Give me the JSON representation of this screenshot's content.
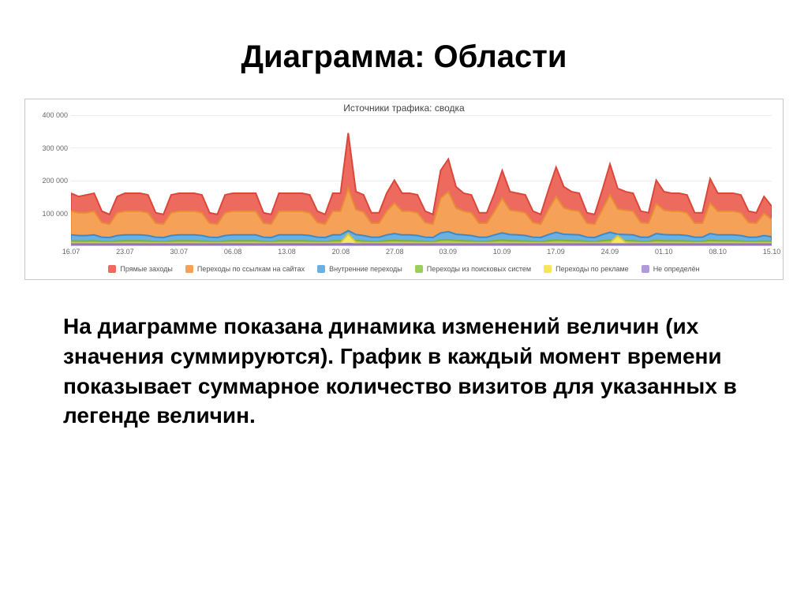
{
  "slide": {
    "title": "Диаграмма: Области",
    "body": "На диаграмме показана динамика изменений величин (их значения суммируются). График в каждый момент времени показывает суммарное количество визитов для указанных в легенде величин."
  },
  "chart": {
    "type": "area",
    "title": "Источники трафика: сводка",
    "background_color": "#ffffff",
    "grid_color": "#eeeeee",
    "border_color": "#c8c8c8",
    "y_axis": {
      "min": 0,
      "max": 400000,
      "ticks": [
        100000,
        200000,
        300000,
        400000
      ],
      "tick_labels": [
        "100 000",
        "200 000",
        "300 000",
        "400 000"
      ],
      "fontsize": 9,
      "color": "#666666"
    },
    "x_axis": {
      "labels": [
        "16.07",
        "23.07",
        "30.07",
        "06.08",
        "13.08",
        "20.08",
        "27.08",
        "03.09",
        "10.09",
        "17.09",
        "24.09",
        "01.10",
        "08.10",
        "15.10"
      ],
      "positions_pct": [
        0,
        7.7,
        15.4,
        23.1,
        30.8,
        38.5,
        46.2,
        53.8,
        61.5,
        69.2,
        76.9,
        84.6,
        92.3,
        100
      ],
      "fontsize": 9,
      "color": "#666666"
    },
    "series_stacked_top_to_bottom": [
      {
        "name": "Прямые заходы",
        "color": "#ec6a5e",
        "stroke": "#d9483a",
        "cum_values": [
          160000,
          150000,
          155000,
          160000,
          105000,
          95000,
          150000,
          160000,
          160000,
          160000,
          155000,
          100000,
          95000,
          155000,
          160000,
          160000,
          160000,
          155000,
          100000,
          95000,
          155000,
          160000,
          160000,
          160000,
          160000,
          100000,
          95000,
          160000,
          160000,
          160000,
          160000,
          155000,
          105000,
          95000,
          160000,
          160000,
          345000,
          165000,
          155000,
          100000,
          100000,
          160000,
          200000,
          160000,
          160000,
          155000,
          105000,
          95000,
          230000,
          265000,
          180000,
          160000,
          155000,
          100000,
          100000,
          160000,
          230000,
          165000,
          160000,
          155000,
          105000,
          95000,
          170000,
          240000,
          180000,
          165000,
          160000,
          100000,
          95000,
          170000,
          250000,
          175000,
          165000,
          160000,
          105000,
          100000,
          200000,
          165000,
          160000,
          160000,
          155000,
          100000,
          100000,
          205000,
          160000,
          160000,
          160000,
          155000,
          105000,
          100000,
          150000,
          120000
        ]
      },
      {
        "name": "Переходы по ссылкам на сайтах",
        "color": "#f5a158",
        "stroke": "#e78b35",
        "cum_values": [
          105000,
          100000,
          100000,
          105000,
          70000,
          65000,
          100000,
          105000,
          105000,
          105000,
          100000,
          68000,
          65000,
          100000,
          105000,
          105000,
          105000,
          100000,
          68000,
          65000,
          100000,
          105000,
          105000,
          105000,
          105000,
          68000,
          65000,
          105000,
          105000,
          105000,
          105000,
          100000,
          70000,
          65000,
          105000,
          105000,
          175000,
          110000,
          102000,
          68000,
          68000,
          105000,
          130000,
          105000,
          105000,
          100000,
          70000,
          65000,
          145000,
          165000,
          115000,
          105000,
          100000,
          68000,
          68000,
          105000,
          145000,
          108000,
          105000,
          100000,
          70000,
          65000,
          110000,
          150000,
          115000,
          108000,
          105000,
          68000,
          65000,
          110000,
          155000,
          112000,
          108000,
          105000,
          70000,
          68000,
          128000,
          108000,
          105000,
          105000,
          100000,
          68000,
          68000,
          130000,
          105000,
          105000,
          105000,
          100000,
          70000,
          68000,
          98000,
          80000
        ]
      },
      {
        "name": "Внутренние переходы",
        "color": "#6ab0e2",
        "stroke": "#3e8ac7",
        "cum_values": [
          32000,
          30000,
          30000,
          32000,
          25000,
          24000,
          30000,
          32000,
          32000,
          32000,
          30000,
          25000,
          24000,
          30000,
          32000,
          32000,
          32000,
          30000,
          25000,
          24000,
          30000,
          32000,
          32000,
          32000,
          32000,
          25000,
          24000,
          32000,
          32000,
          32000,
          32000,
          30000,
          25000,
          24000,
          32000,
          32000,
          45000,
          33000,
          30000,
          25000,
          25000,
          32000,
          36000,
          32000,
          32000,
          30000,
          25000,
          24000,
          38000,
          42000,
          34000,
          32000,
          30000,
          25000,
          25000,
          32000,
          38000,
          33000,
          32000,
          30000,
          25000,
          24000,
          33000,
          40000,
          34000,
          33000,
          32000,
          25000,
          24000,
          33000,
          40000,
          34000,
          33000,
          32000,
          25000,
          25000,
          36000,
          33000,
          32000,
          32000,
          30000,
          25000,
          25000,
          36000,
          32000,
          32000,
          32000,
          30000,
          25000,
          25000,
          30000,
          26000
        ]
      },
      {
        "name": "Переходы из поисковых систем",
        "color": "#9bcf5c",
        "stroke": "#78b239",
        "cum_values": [
          14000,
          13000,
          13000,
          14000,
          12000,
          11000,
          13000,
          14000,
          14000,
          14000,
          13000,
          12000,
          11000,
          13000,
          14000,
          14000,
          14000,
          13000,
          12000,
          11000,
          13000,
          14000,
          14000,
          14000,
          14000,
          12000,
          11000,
          14000,
          14000,
          14000,
          14000,
          13000,
          12000,
          11000,
          14000,
          14000,
          18000,
          15000,
          13000,
          12000,
          12000,
          14000,
          15000,
          14000,
          14000,
          13000,
          12000,
          11000,
          16000,
          17000,
          15000,
          14000,
          13000,
          12000,
          12000,
          14000,
          16000,
          14000,
          14000,
          13000,
          12000,
          11000,
          14000,
          16000,
          15000,
          14000,
          14000,
          12000,
          11000,
          14000,
          16000,
          15000,
          14000,
          14000,
          12000,
          12000,
          15000,
          14000,
          14000,
          14000,
          13000,
          12000,
          12000,
          15000,
          14000,
          14000,
          14000,
          13000,
          12000,
          12000,
          13000,
          12000
        ]
      },
      {
        "name": "Переходы по рекламе",
        "color": "#f5e55c",
        "stroke": "#d9c836",
        "cum_values": [
          8000,
          8000,
          8000,
          8000,
          8000,
          8000,
          8000,
          8000,
          8000,
          8000,
          8000,
          8000,
          8000,
          8000,
          8000,
          8000,
          8000,
          8000,
          8000,
          8000,
          8000,
          8000,
          8000,
          8000,
          8000,
          8000,
          8000,
          8000,
          8000,
          8000,
          8000,
          8000,
          8000,
          8000,
          8000,
          8000,
          35000,
          10000,
          8000,
          8000,
          8000,
          8000,
          8000,
          8000,
          8000,
          8000,
          8000,
          8000,
          8000,
          8000,
          8000,
          8000,
          8000,
          8000,
          8000,
          8000,
          8000,
          8000,
          8000,
          8000,
          8000,
          8000,
          8000,
          8000,
          8000,
          8000,
          8000,
          8000,
          8000,
          8000,
          8000,
          30000,
          10000,
          8000,
          8000,
          8000,
          8000,
          8000,
          8000,
          8000,
          8000,
          8000,
          8000,
          8000,
          8000,
          8000,
          8000,
          8000,
          8000,
          8000,
          8000,
          8000
        ]
      },
      {
        "name": "Не определён",
        "color": "#b19ad9",
        "stroke": "#8f74c1",
        "cum_values": [
          4000,
          4000,
          4000,
          4000,
          4000,
          4000,
          4000,
          4000,
          4000,
          4000,
          4000,
          4000,
          4000,
          4000,
          4000,
          4000,
          4000,
          4000,
          4000,
          4000,
          4000,
          4000,
          4000,
          4000,
          4000,
          4000,
          4000,
          4000,
          4000,
          4000,
          4000,
          4000,
          4000,
          4000,
          4000,
          4000,
          5000,
          4000,
          4000,
          4000,
          4000,
          4000,
          4000,
          4000,
          4000,
          4000,
          4000,
          4000,
          4000,
          4000,
          4000,
          4000,
          4000,
          4000,
          4000,
          4000,
          4000,
          4000,
          4000,
          4000,
          4000,
          4000,
          4000,
          4000,
          4000,
          4000,
          4000,
          4000,
          4000,
          4000,
          4000,
          4000,
          4000,
          4000,
          4000,
          4000,
          4000,
          4000,
          4000,
          4000,
          4000,
          4000,
          4000,
          4000,
          4000,
          4000,
          4000,
          4000,
          4000,
          4000,
          4000,
          4000
        ]
      }
    ],
    "legend": [
      {
        "label": "Прямые заходы",
        "color": "#ec6a5e"
      },
      {
        "label": "Переходы по ссылкам на сайтах",
        "color": "#f5a158"
      },
      {
        "label": "Внутренние переходы",
        "color": "#6ab0e2"
      },
      {
        "label": "Переходы из поисковых систем",
        "color": "#9bcf5c"
      },
      {
        "label": "Переходы по рекламе",
        "color": "#f5e55c"
      },
      {
        "label": "Не определён",
        "color": "#b19ad9"
      }
    ],
    "legend_fontsize": 9,
    "n_points": 92
  }
}
